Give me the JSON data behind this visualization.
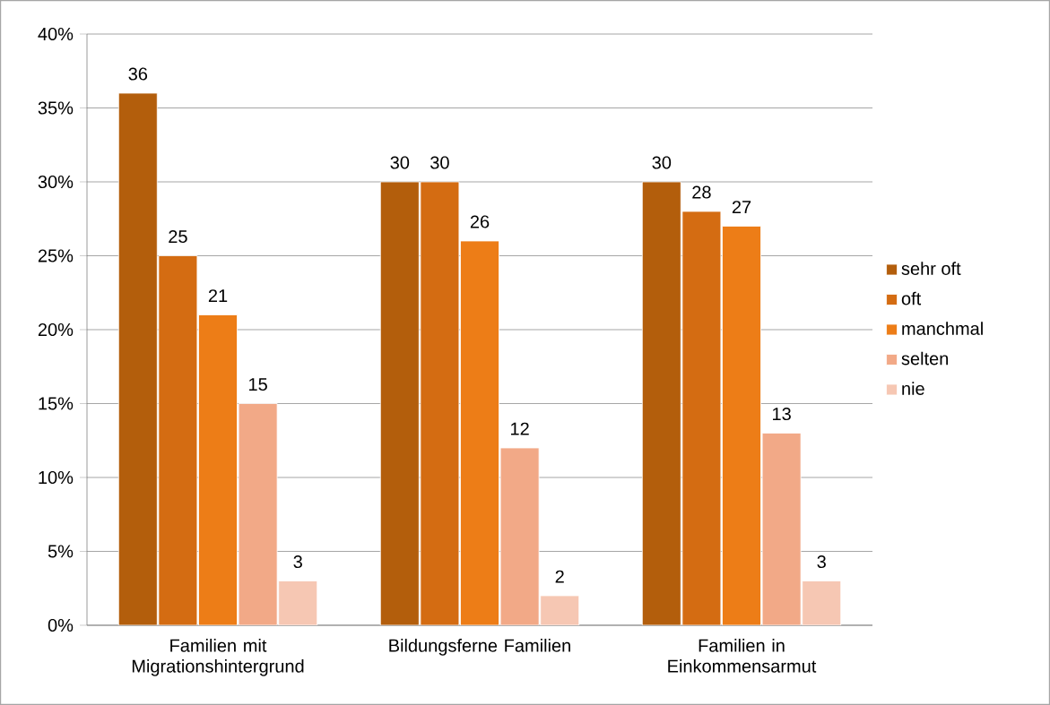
{
  "chart_data": {
    "type": "bar",
    "categories": [
      "Familien mit Migrationshintergrund",
      "Bildungsferne Familien",
      "Familien in Einkommensarmut"
    ],
    "series": [
      {
        "name": "sehr oft",
        "color": "#b35e0c",
        "values": [
          36,
          30,
          30
        ]
      },
      {
        "name": "oft",
        "color": "#d46c12",
        "values": [
          25,
          30,
          28
        ]
      },
      {
        "name": "manchmal",
        "color": "#ed7d17",
        "values": [
          21,
          26,
          27
        ]
      },
      {
        "name": "selten",
        "color": "#f2a987",
        "values": [
          15,
          12,
          13
        ]
      },
      {
        "name": "nie",
        "color": "#f6c7b3",
        "values": [
          3,
          2,
          3
        ]
      }
    ],
    "ylim": [
      0,
      40
    ],
    "yticks": [
      {
        "value": 0,
        "label": "0%"
      },
      {
        "value": 5,
        "label": "5%"
      },
      {
        "value": 10,
        "label": "10%"
      },
      {
        "value": 15,
        "label": "15%"
      },
      {
        "value": 20,
        "label": "20%"
      },
      {
        "value": 25,
        "label": "25%"
      },
      {
        "value": 30,
        "label": "30%"
      },
      {
        "value": 35,
        "label": "35%"
      },
      {
        "value": 40,
        "label": "40%"
      }
    ],
    "grid": "y",
    "legend": "right",
    "data_labels": true
  }
}
